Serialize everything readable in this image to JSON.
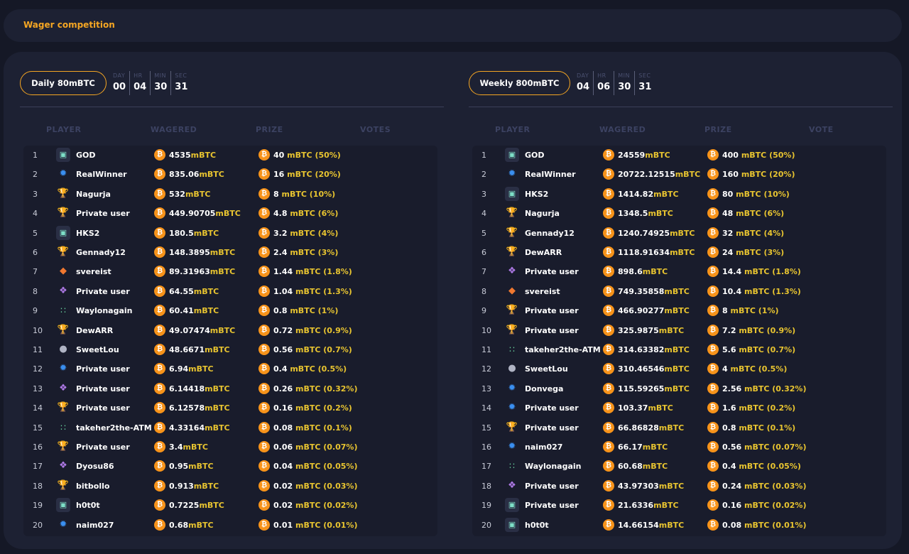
{
  "header": {
    "title": "Wager competition"
  },
  "columns": {
    "player": "PLAYER",
    "wagered": "WAGERED",
    "prize": "PRIZE",
    "votes": "VOTES",
    "vote": "VOTE"
  },
  "unit": "mBTC",
  "timer_labels": {
    "day": "DAY",
    "hr": "HR",
    "min": "MIN",
    "sec": "SEC"
  },
  "daily": {
    "label": "Daily 80mBTC",
    "timer": {
      "day": "00",
      "hr": "04",
      "min": "30",
      "sec": "31"
    },
    "rows": [
      {
        "rank": "1",
        "name": "GOD",
        "wagered": "4535",
        "prize": "40",
        "pct": "(50%)",
        "icon": "geo-avatar-icon"
      },
      {
        "rank": "2",
        "name": "RealWinner",
        "wagered": "835.06",
        "prize": "16",
        "pct": "(20%)",
        "icon": "blue-avatar-icon"
      },
      {
        "rank": "3",
        "name": "Nagurja",
        "wagered": "532",
        "prize": "8",
        "pct": "(10%)",
        "icon": "trophy-icon"
      },
      {
        "rank": "4",
        "name": "Private user",
        "wagered": "449.90705",
        "prize": "4.8",
        "pct": "(6%)",
        "icon": "trophy-icon"
      },
      {
        "rank": "5",
        "name": "HKS2",
        "wagered": "180.5",
        "prize": "3.2",
        "pct": "(4%)",
        "icon": "geo-avatar-icon"
      },
      {
        "rank": "6",
        "name": "Gennady12",
        "wagered": "148.3895",
        "prize": "2.4",
        "pct": "(3%)",
        "icon": "trophy-icon"
      },
      {
        "rank": "7",
        "name": "svereist",
        "wagered": "89.31963",
        "prize": "1.44",
        "pct": "(1.8%)",
        "icon": "fox-avatar-icon"
      },
      {
        "rank": "8",
        "name": "Private user",
        "wagered": "64.55",
        "prize": "1.04",
        "pct": "(1.3%)",
        "icon": "purple-avatar-icon"
      },
      {
        "rank": "9",
        "name": "Waylonagain",
        "wagered": "60.41",
        "prize": "0.8",
        "pct": "(1%)",
        "icon": "dots-avatar-icon"
      },
      {
        "rank": "10",
        "name": "DewARR",
        "wagered": "49.07474",
        "prize": "0.72",
        "pct": "(0.9%)",
        "icon": "trophy-icon"
      },
      {
        "rank": "11",
        "name": "SweetLou",
        "wagered": "48.6671",
        "prize": "0.56",
        "pct": "(0.7%)",
        "icon": "gray-avatar-icon"
      },
      {
        "rank": "12",
        "name": "Private user",
        "wagered": "6.94",
        "prize": "0.4",
        "pct": "(0.5%)",
        "icon": "blue-avatar-icon"
      },
      {
        "rank": "13",
        "name": "Private user",
        "wagered": "6.14418",
        "prize": "0.26",
        "pct": "(0.32%)",
        "icon": "purple-avatar-icon"
      },
      {
        "rank": "14",
        "name": "Private user",
        "wagered": "6.12578",
        "prize": "0.16",
        "pct": "(0.2%)",
        "icon": "trophy-icon"
      },
      {
        "rank": "15",
        "name": "takeher2the-ATM",
        "wagered": "4.33164",
        "prize": "0.08",
        "pct": "(0.1%)",
        "icon": "dots-avatar-icon"
      },
      {
        "rank": "16",
        "name": "Private user",
        "wagered": "3.4",
        "prize": "0.06",
        "pct": "(0.07%)",
        "icon": "trophy-icon"
      },
      {
        "rank": "17",
        "name": "Dyosu86",
        "wagered": "0.95",
        "prize": "0.04",
        "pct": "(0.05%)",
        "icon": "purple-avatar-icon"
      },
      {
        "rank": "18",
        "name": "bitbollo",
        "wagered": "0.913",
        "prize": "0.02",
        "pct": "(0.03%)",
        "icon": "trophy-icon"
      },
      {
        "rank": "19",
        "name": "h0t0t",
        "wagered": "0.7225",
        "prize": "0.02",
        "pct": "(0.02%)",
        "icon": "geo-avatar-icon"
      },
      {
        "rank": "20",
        "name": "naim027",
        "wagered": "0.68",
        "prize": "0.01",
        "pct": "(0.01%)",
        "icon": "blue-avatar-icon"
      }
    ]
  },
  "weekly": {
    "label": "Weekly 800mBTC",
    "timer": {
      "day": "04",
      "hr": "06",
      "min": "30",
      "sec": "31"
    },
    "rows": [
      {
        "rank": "1",
        "name": "GOD",
        "wagered": "24559",
        "prize": "400",
        "pct": "(50%)",
        "icon": "geo-avatar-icon"
      },
      {
        "rank": "2",
        "name": "RealWinner",
        "wagered": "20722.12515",
        "prize": "160",
        "pct": "(20%)",
        "icon": "blue-avatar-icon"
      },
      {
        "rank": "3",
        "name": "HKS2",
        "wagered": "1414.82",
        "prize": "80",
        "pct": "(10%)",
        "icon": "geo-avatar-icon"
      },
      {
        "rank": "4",
        "name": "Nagurja",
        "wagered": "1348.5",
        "prize": "48",
        "pct": "(6%)",
        "icon": "trophy-icon"
      },
      {
        "rank": "5",
        "name": "Gennady12",
        "wagered": "1240.74925",
        "prize": "32",
        "pct": "(4%)",
        "icon": "trophy-icon"
      },
      {
        "rank": "6",
        "name": "DewARR",
        "wagered": "1118.91634",
        "prize": "24",
        "pct": "(3%)",
        "icon": "trophy-icon"
      },
      {
        "rank": "7",
        "name": "Private user",
        "wagered": "898.6",
        "prize": "14.4",
        "pct": "(1.8%)",
        "icon": "purple-avatar-icon"
      },
      {
        "rank": "8",
        "name": "svereist",
        "wagered": "749.35858",
        "prize": "10.4",
        "pct": "(1.3%)",
        "icon": "fox-avatar-icon"
      },
      {
        "rank": "9",
        "name": "Private user",
        "wagered": "466.90277",
        "prize": "8",
        "pct": "(1%)",
        "icon": "trophy-icon"
      },
      {
        "rank": "10",
        "name": "Private user",
        "wagered": "325.9875",
        "prize": "7.2",
        "pct": "(0.9%)",
        "icon": "trophy-icon"
      },
      {
        "rank": "11",
        "name": "takeher2the-ATM",
        "wagered": "314.63382",
        "prize": "5.6",
        "pct": "(0.7%)",
        "icon": "dots-avatar-icon"
      },
      {
        "rank": "12",
        "name": "SweetLou",
        "wagered": "310.46546",
        "prize": "4",
        "pct": "(0.5%)",
        "icon": "gray-avatar-icon"
      },
      {
        "rank": "13",
        "name": "Donvega",
        "wagered": "115.59265",
        "prize": "2.56",
        "pct": "(0.32%)",
        "icon": "blue-avatar-icon"
      },
      {
        "rank": "14",
        "name": "Private user",
        "wagered": "103.37",
        "prize": "1.6",
        "pct": "(0.2%)",
        "icon": "blue-avatar-icon"
      },
      {
        "rank": "15",
        "name": "Private user",
        "wagered": "66.86828",
        "prize": "0.8",
        "pct": "(0.1%)",
        "icon": "trophy-icon"
      },
      {
        "rank": "16",
        "name": "naim027",
        "wagered": "66.17",
        "prize": "0.56",
        "pct": "(0.07%)",
        "icon": "blue-avatar-icon"
      },
      {
        "rank": "17",
        "name": "Waylonagain",
        "wagered": "60.68",
        "prize": "0.4",
        "pct": "(0.05%)",
        "icon": "dots-avatar-icon"
      },
      {
        "rank": "18",
        "name": "Private user",
        "wagered": "43.97303",
        "prize": "0.24",
        "pct": "(0.03%)",
        "icon": "purple-avatar-icon"
      },
      {
        "rank": "19",
        "name": "Private user",
        "wagered": "21.6336",
        "prize": "0.16",
        "pct": "(0.02%)",
        "icon": "geo-avatar-icon"
      },
      {
        "rank": "20",
        "name": "h0t0t",
        "wagered": "14.66154",
        "prize": "0.08",
        "pct": "(0.01%)",
        "icon": "geo-avatar-icon"
      }
    ]
  },
  "icons": {
    "coin": "bitcoin-coin-icon",
    "coin_glyph": "₿"
  },
  "colors": {
    "accent": "#f5a623",
    "unit": "#e8c430",
    "coin": "#f7931a"
  }
}
